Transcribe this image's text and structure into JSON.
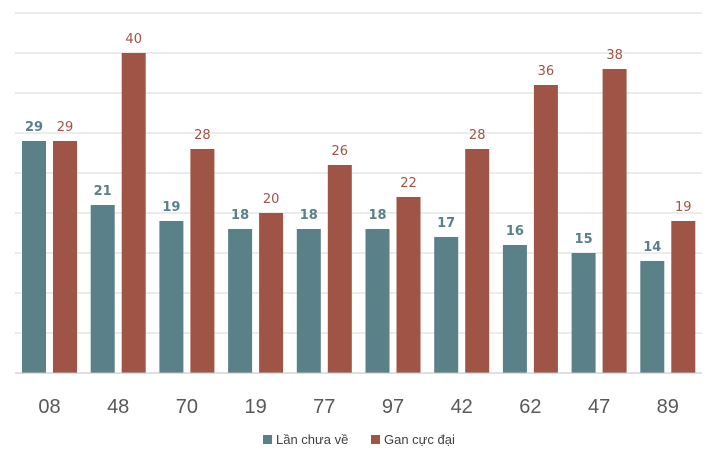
{
  "chart_data": {
    "type": "bar",
    "title": "",
    "xlabel": "",
    "ylabel": "",
    "categories": [
      "08",
      "48",
      "70",
      "19",
      "77",
      "97",
      "42",
      "62",
      "47",
      "89"
    ],
    "series": [
      {
        "name": "Lần chưa về",
        "color": "#5a8088",
        "values": [
          29,
          21,
          19,
          18,
          18,
          18,
          17,
          16,
          15,
          14
        ]
      },
      {
        "name": "Gan cực đại",
        "color": "#a05445",
        "values": [
          29,
          40,
          28,
          20,
          26,
          22,
          28,
          36,
          38,
          19
        ]
      }
    ],
    "ylim": [
      0,
      45
    ],
    "grid": true,
    "y_ticks_visible": false,
    "legend": "bottom-center"
  }
}
